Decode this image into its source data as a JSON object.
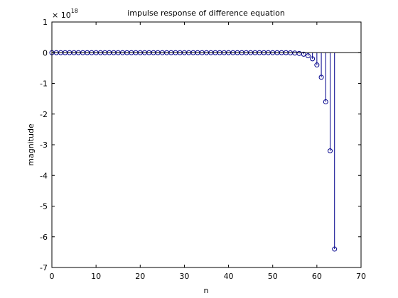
{
  "chart_data": {
    "type": "stem",
    "title": "impulse response of difference equation",
    "xlabel": "n",
    "ylabel": "magnitude",
    "exponent_label": "× 10",
    "exponent_power": "18",
    "xlim": [
      0,
      70
    ],
    "ylim": [
      -7,
      1
    ],
    "y_scale_factor": 1e+18,
    "x_ticks": [
      0,
      10,
      20,
      30,
      40,
      50,
      60,
      70
    ],
    "y_ticks": [
      1,
      0,
      -1,
      -2,
      -3,
      -4,
      -5,
      -6,
      -7
    ],
    "stem_color": "#00008b",
    "baseline_color": "#000000",
    "grid": false,
    "x": [
      0,
      1,
      2,
      3,
      4,
      5,
      6,
      7,
      8,
      9,
      10,
      11,
      12,
      13,
      14,
      15,
      16,
      17,
      18,
      19,
      20,
      21,
      22,
      23,
      24,
      25,
      26,
      27,
      28,
      29,
      30,
      31,
      32,
      33,
      34,
      35,
      36,
      37,
      38,
      39,
      40,
      41,
      42,
      43,
      44,
      45,
      46,
      47,
      48,
      49,
      50,
      51,
      52,
      53,
      54,
      55,
      56,
      57,
      58,
      59,
      60,
      61,
      62,
      63,
      64
    ],
    "y": [
      0,
      0,
      0,
      0,
      0,
      0,
      0,
      0,
      0,
      0,
      0,
      0,
      0,
      0,
      0,
      0,
      0,
      0,
      0,
      0,
      0,
      0,
      0,
      0,
      0,
      0,
      0,
      0,
      0,
      0,
      0,
      0,
      0,
      0,
      0,
      0,
      0,
      0,
      0,
      0,
      0,
      0,
      0,
      0,
      0,
      0,
      0,
      0,
      0,
      0,
      0,
      0,
      0,
      0,
      -0.0063,
      -0.0125,
      -0.025,
      -0.05,
      -0.1,
      -0.2,
      -0.4,
      -0.8,
      -1.6,
      -3.2,
      -6.4
    ]
  }
}
